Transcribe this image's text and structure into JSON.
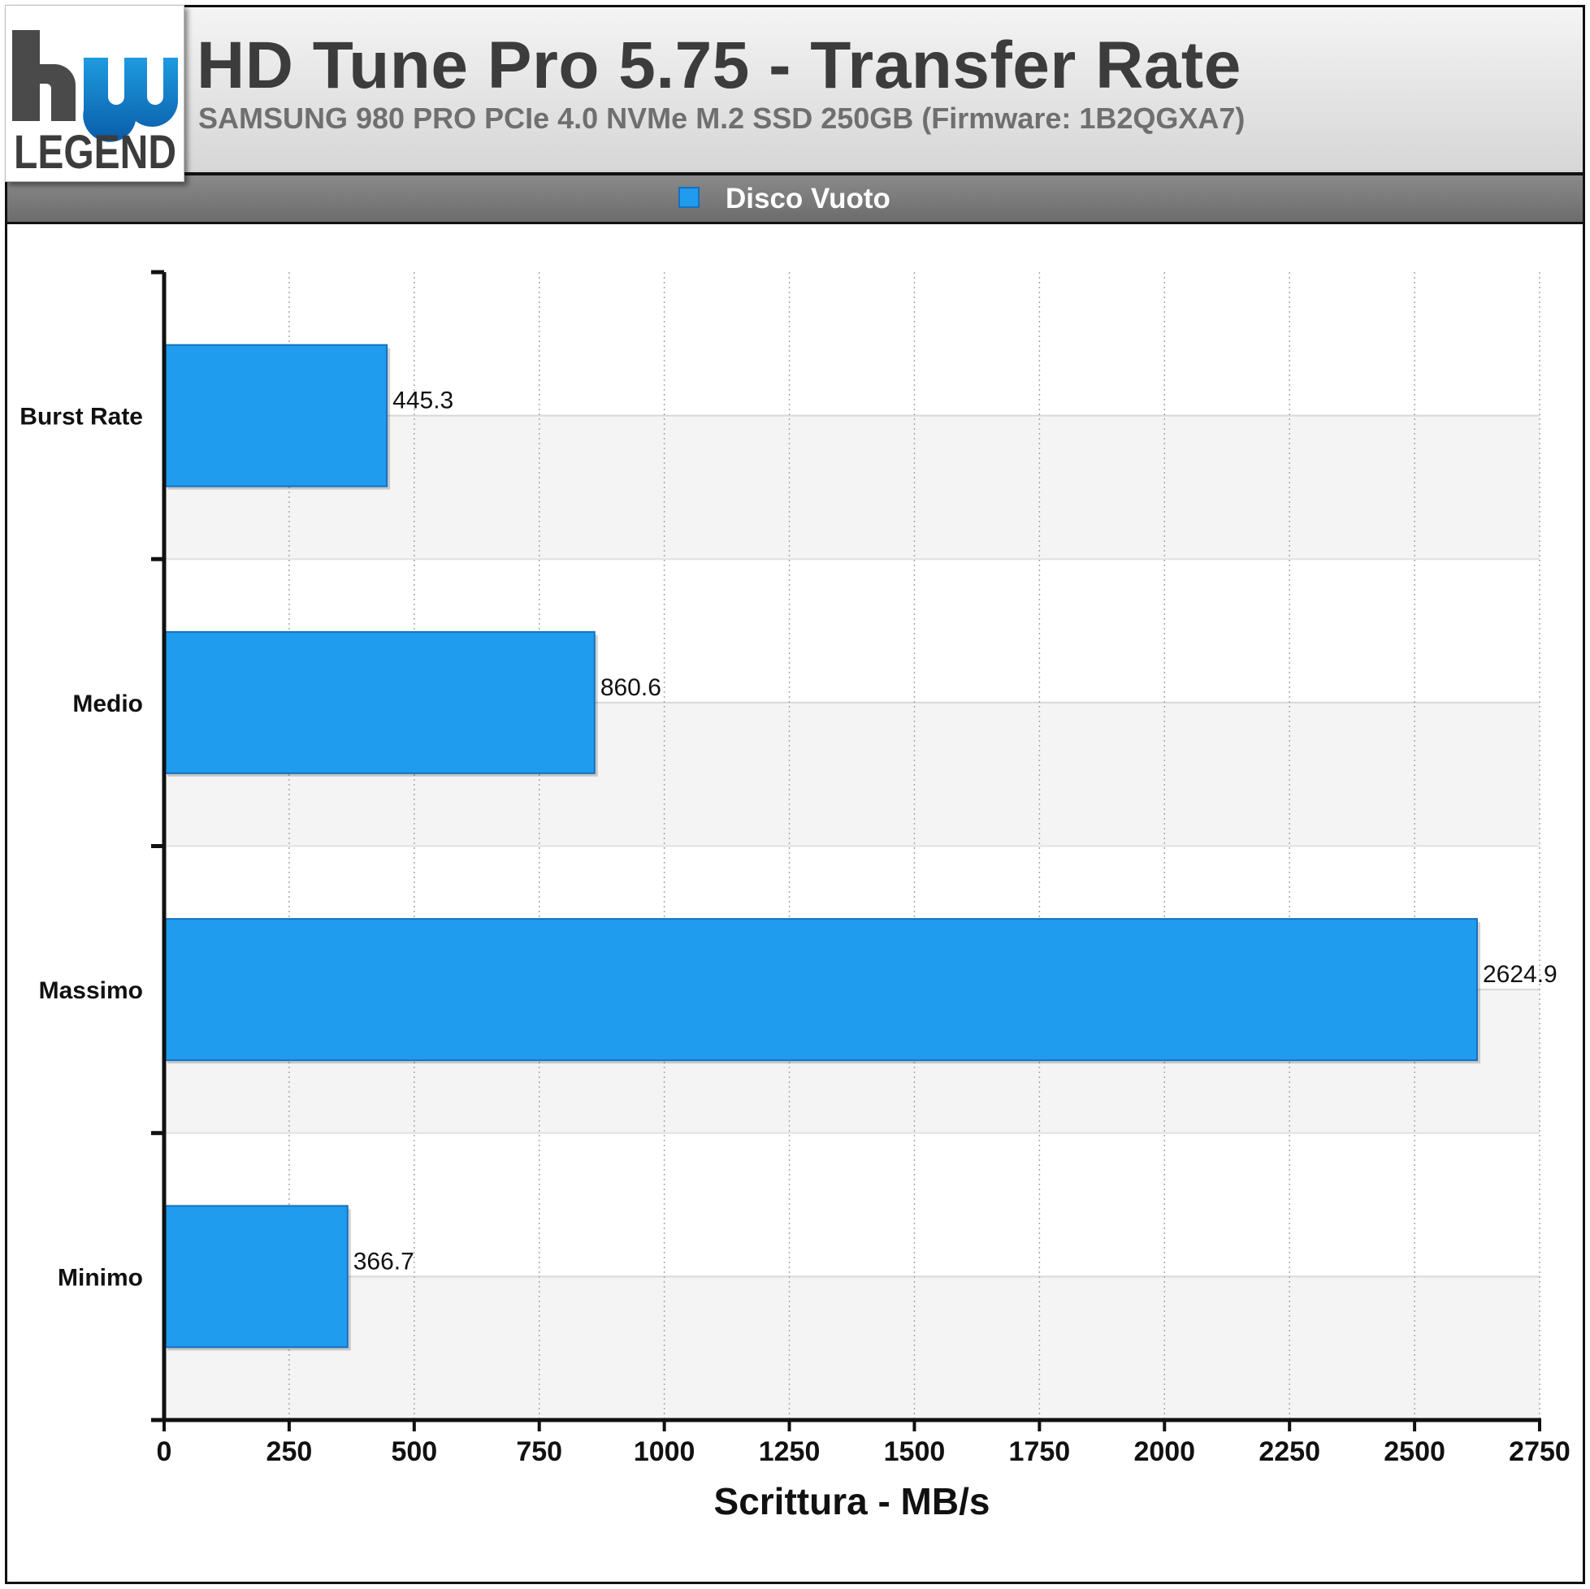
{
  "header": {
    "title": "HD Tune Pro 5.75 - Transfer Rate",
    "subtitle": "SAMSUNG 980 PRO PCIe 4.0 NVMe M.2 SSD 250GB (Firmware: 1B2QGXA7)"
  },
  "logo": {
    "text": "LEGEND",
    "mark": "hw"
  },
  "colors": {
    "bar": "#209cee",
    "bar_border": "#1670c0",
    "band": "#f4f4f4",
    "header_bar": "#767676"
  },
  "chart_data": {
    "type": "bar",
    "orientation": "horizontal",
    "categories": [
      "Burst Rate",
      "Medio",
      "Massimo",
      "Minimo"
    ],
    "series": [
      {
        "name": "Disco Vuoto",
        "values": [
          445.3,
          860.6,
          2624.9,
          366.7
        ]
      }
    ],
    "data_labels": [
      "445.3",
      "860.6",
      "2624.9",
      "366.7"
    ],
    "xlabel": "Scrittura - MB/s",
    "ylabel": "",
    "xlim": [
      0,
      2750
    ],
    "xticks": [
      0,
      250,
      500,
      750,
      1000,
      1250,
      1500,
      1750,
      2000,
      2250,
      2500,
      2750
    ],
    "grid": true,
    "legend_position": "top-center"
  }
}
